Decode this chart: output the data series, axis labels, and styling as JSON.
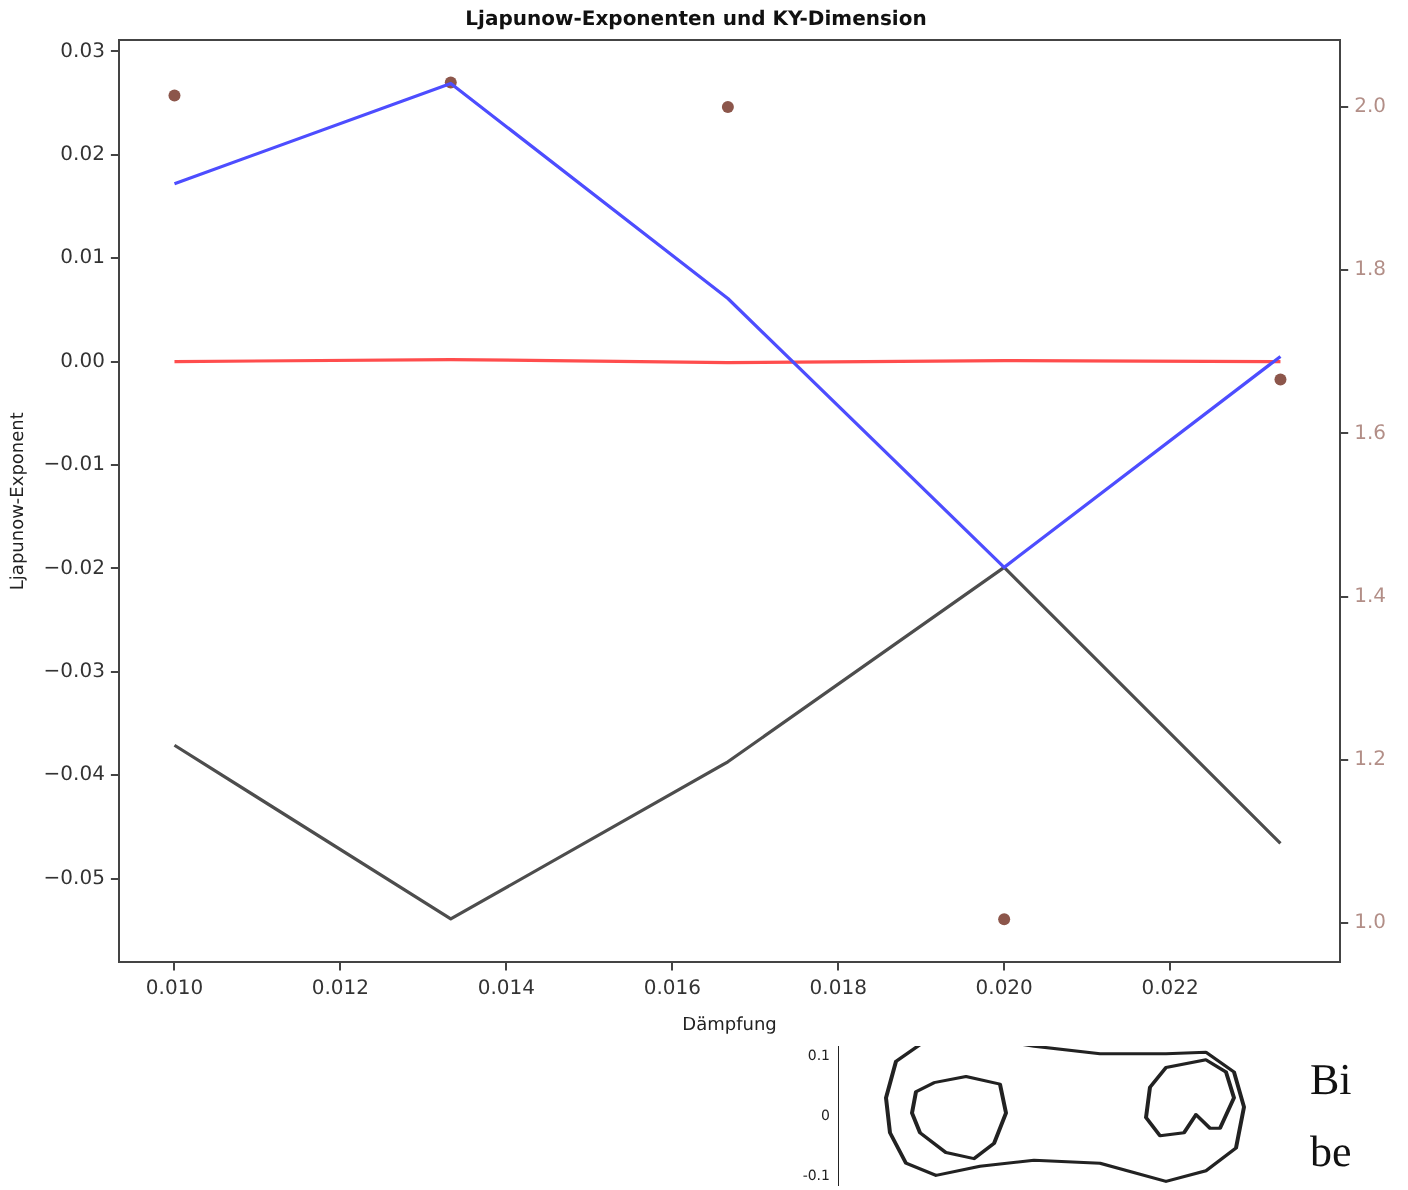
{
  "chart_data": {
    "type": "line",
    "title": "Ljapunow-Exponenten und KY-Dimension",
    "xlabel": "Dämpfung",
    "ylabel": "Ljapunow-Exponent",
    "x": [
      0.01,
      0.01333,
      0.01667,
      0.02,
      0.02333
    ],
    "series": [
      {
        "color": "#4d4dff",
        "values": [
          0.0172,
          0.0269,
          0.0061,
          -0.0199,
          0.0005
        ]
      },
      {
        "color": "#ff4d4d",
        "values": [
          0,
          0.0002,
          -0.0001,
          0.0001,
          0
        ]
      },
      {
        "color": "#4d4d4d",
        "values": [
          -0.0371,
          -0.0539,
          -0.0387,
          -0.0199,
          -0.0466
        ]
      },
      {
        "type": "scatter",
        "axis": "y2",
        "color": "#8c564b",
        "marker": "circle",
        "values": [
          2.014,
          2.03,
          2.0,
          1.005,
          1.666
        ]
      }
    ],
    "xlim": [
      0.00933,
      0.02405
    ],
    "xticks": [
      {
        "value": 0.01,
        "label": "0.010"
      },
      {
        "value": 0.012,
        "label": "0.012"
      },
      {
        "value": 0.014,
        "label": "0.014"
      },
      {
        "value": 0.016,
        "label": "0.016"
      },
      {
        "value": 0.018,
        "label": "0.018"
      },
      {
        "value": 0.02,
        "label": "0.020"
      },
      {
        "value": 0.022,
        "label": "0.022"
      }
    ],
    "ylim": [
      -0.0581,
      0.0311
    ],
    "yticks": [
      {
        "value": -0.05,
        "label": "−0.05"
      },
      {
        "value": -0.04,
        "label": "−0.04"
      },
      {
        "value": -0.03,
        "label": "−0.03"
      },
      {
        "value": -0.02,
        "label": "−0.02"
      },
      {
        "value": -0.01,
        "label": "−0.01"
      },
      {
        "value": 0,
        "label": "0.00"
      },
      {
        "value": 0.01,
        "label": "0.01"
      },
      {
        "value": 0.02,
        "label": "0.02"
      },
      {
        "value": 0.03,
        "label": "0.03"
      }
    ],
    "y2lim": [
      0.952,
      2.082
    ],
    "y2ticks": [
      {
        "value": 1,
        "label": "1.0"
      },
      {
        "value": 1.2,
        "label": "1.2"
      },
      {
        "value": 1.4,
        "label": "1.4"
      },
      {
        "value": 1.6,
        "label": "1.6"
      },
      {
        "value": 1.8,
        "label": "1.8"
      },
      {
        "value": 2,
        "label": "2.0"
      }
    ],
    "grid": false,
    "legend": false,
    "marker": "none",
    "line_style": "solid",
    "annotations": [
      "0.1",
      "0",
      "-0.1",
      "Bi",
      "be"
    ]
  }
}
